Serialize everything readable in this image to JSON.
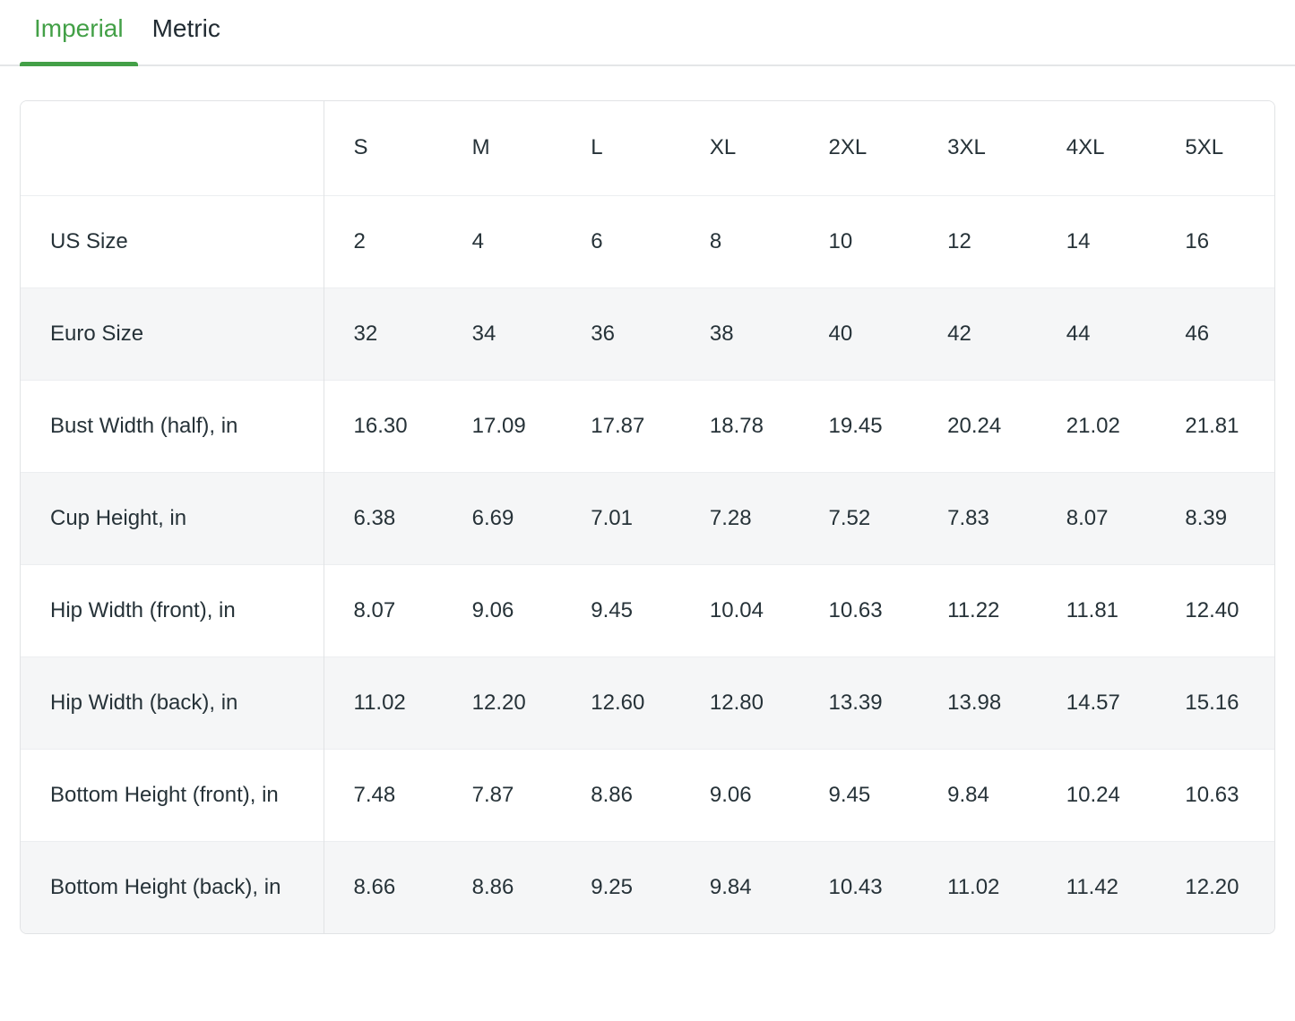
{
  "colors": {
    "accent_green": "#43a047",
    "stripe_gray": "#f5f6f7",
    "border_gray": "#e1e3e5",
    "text_dark": "#263238"
  },
  "tabs": [
    {
      "label": "Imperial",
      "active": true
    },
    {
      "label": "Metric",
      "active": false
    }
  ],
  "size_table": {
    "columns": [
      "S",
      "M",
      "L",
      "XL",
      "2XL",
      "3XL",
      "4XL",
      "5XL"
    ],
    "rows": [
      {
        "label": "US Size",
        "values": [
          "2",
          "4",
          "6",
          "8",
          "10",
          "12",
          "14",
          "16"
        ]
      },
      {
        "label": "Euro Size",
        "values": [
          "32",
          "34",
          "36",
          "38",
          "40",
          "42",
          "44",
          "46"
        ]
      },
      {
        "label": "Bust Width (half), in",
        "values": [
          "16.30",
          "17.09",
          "17.87",
          "18.78",
          "19.45",
          "20.24",
          "21.02",
          "21.81"
        ]
      },
      {
        "label": "Cup Height, in",
        "values": [
          "6.38",
          "6.69",
          "7.01",
          "7.28",
          "7.52",
          "7.83",
          "8.07",
          "8.39"
        ]
      },
      {
        "label": "Hip Width (front), in",
        "values": [
          "8.07",
          "9.06",
          "9.45",
          "10.04",
          "10.63",
          "11.22",
          "11.81",
          "12.40"
        ]
      },
      {
        "label": "Hip Width (back), in",
        "values": [
          "11.02",
          "12.20",
          "12.60",
          "12.80",
          "13.39",
          "13.98",
          "14.57",
          "15.16"
        ]
      },
      {
        "label": "Bottom Height (front), in",
        "values": [
          "7.48",
          "7.87",
          "8.86",
          "9.06",
          "9.45",
          "9.84",
          "10.24",
          "10.63"
        ]
      },
      {
        "label": "Bottom Height (back), in",
        "values": [
          "8.66",
          "8.86",
          "9.25",
          "9.84",
          "10.43",
          "11.02",
          "11.42",
          "12.20"
        ]
      }
    ]
  }
}
